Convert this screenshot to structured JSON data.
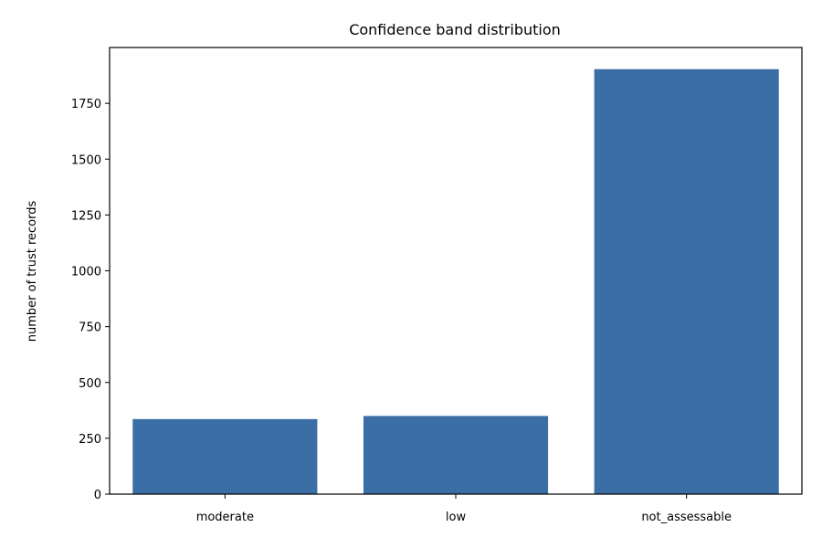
{
  "chart_data": {
    "type": "bar",
    "title": "Confidence band distribution",
    "xlabel": "",
    "ylabel": "number of trust records",
    "categories": [
      "moderate",
      "low",
      "not_assessable"
    ],
    "values": [
      336,
      350,
      1903
    ],
    "ylim": [
      0,
      2000
    ],
    "yticks": [
      0,
      250,
      500,
      750,
      1000,
      1250,
      1500,
      1750
    ],
    "bar_color": "#3b6ea5",
    "grid": false,
    "legend": "none"
  }
}
